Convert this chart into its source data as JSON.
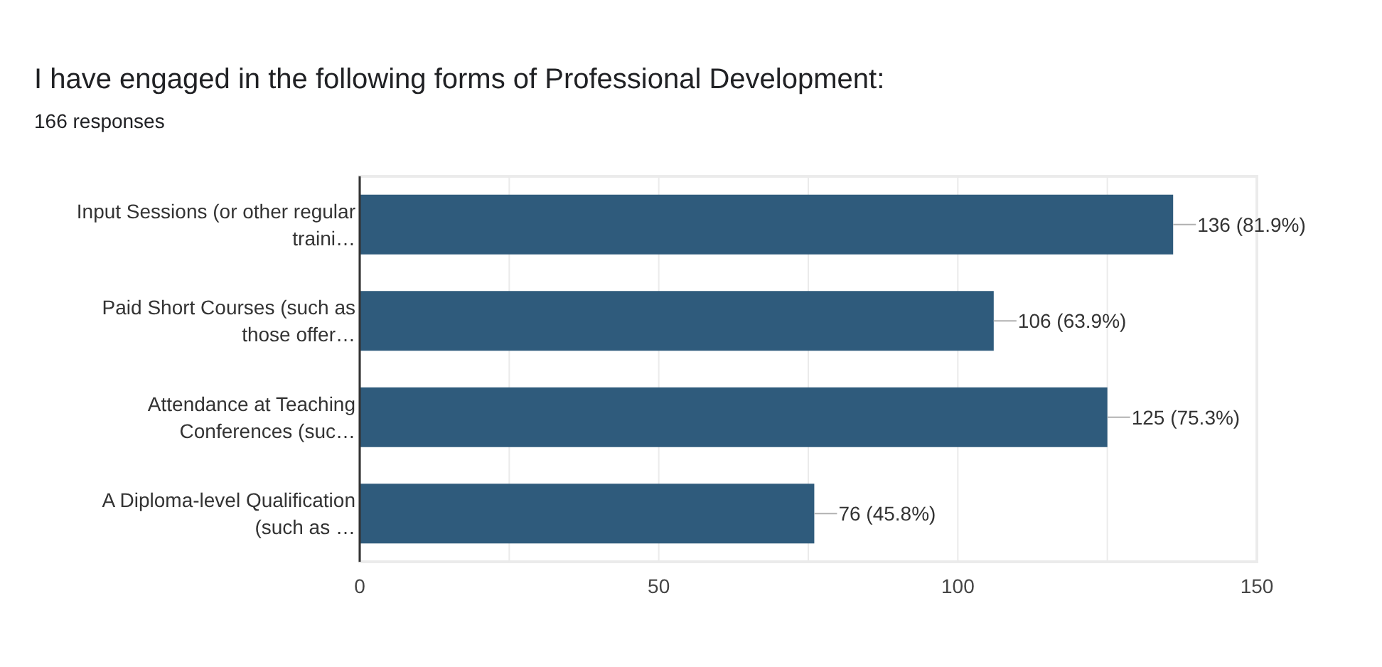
{
  "chart_data": {
    "type": "bar",
    "orientation": "horizontal",
    "title": "I have engaged in the following forms of Professional Development:",
    "subtitle": "166 responses",
    "categories": [
      "Input Sessions (or other regular traini…",
      "Paid Short Courses (such as those offer…",
      "Attendance at Teaching Conferences (suc…",
      "A Diploma-level Qualification (such as …"
    ],
    "values": [
      136,
      106,
      125,
      76
    ],
    "value_labels": [
      "136 (81.9%)",
      "106 (63.9%)",
      "125 (75.3%)",
      "76 (45.8%)"
    ],
    "color": "#2f5b7c",
    "xlim": [
      0,
      150
    ],
    "xticks": [
      0,
      {
        "value": 25,
        "label": null
      },
      50,
      {
        "value": 75,
        "label": null
      },
      100,
      {
        "value": 125,
        "label": null
      },
      150
    ],
    "grid": "x"
  }
}
